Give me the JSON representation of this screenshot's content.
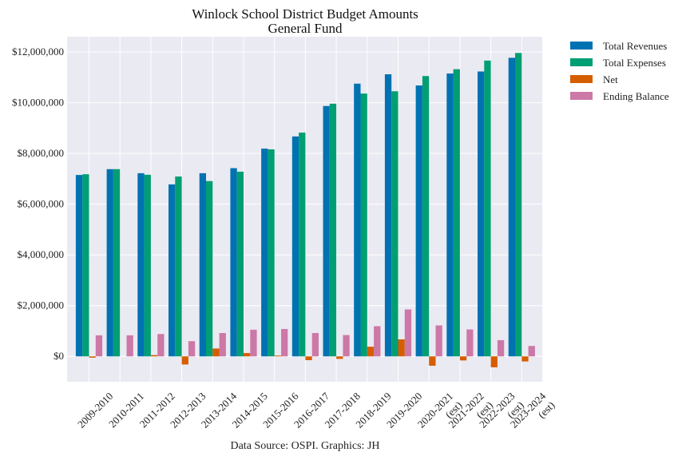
{
  "chart_data": {
    "type": "bar",
    "title": "Winlock School District Budget Amounts",
    "subtitle": "General Fund",
    "xlabel": "",
    "ylabel": "",
    "source": "Data Source: OSPI. Graphics: JH",
    "ylim": [
      -1000000,
      12600000
    ],
    "yticks": [
      0,
      2000000,
      4000000,
      6000000,
      8000000,
      10000000,
      12000000
    ],
    "ytick_labels": [
      "$0",
      "$2,000,000",
      "$4,000,000",
      "$6,000,000",
      "$8,000,000",
      "$10,000,000",
      "$12,000,000"
    ],
    "grid": true,
    "legend_position": "outside top-right",
    "categories": [
      "2009-2010",
      "2010-2011",
      "2011-2012",
      "2012-2013",
      "2013-2014",
      "2014-2015",
      "2015-2016",
      "2016-2017",
      "2017-2018",
      "2018-2019",
      "2019-2020",
      "2020-2021\n(est)",
      "2021-2022\n(est)",
      "2022-2023\n(est)",
      "2023-2024\n(est)"
    ],
    "series": [
      {
        "name": "Total Revenues",
        "color": "#0072b2",
        "values": [
          7150000,
          7380000,
          7220000,
          6780000,
          7220000,
          7420000,
          8190000,
          8670000,
          9870000,
          10750000,
          11120000,
          10680000,
          11150000,
          11230000,
          11770000
        ]
      },
      {
        "name": "Total Expenses",
        "color": "#009e73",
        "values": [
          7180000,
          7380000,
          7160000,
          7090000,
          6910000,
          7280000,
          8160000,
          8820000,
          9960000,
          10360000,
          10450000,
          11050000,
          11320000,
          11660000,
          11960000
        ]
      },
      {
        "name": "Net",
        "color": "#d55e00",
        "values": [
          -50000,
          0,
          50000,
          -320000,
          310000,
          130000,
          30000,
          -150000,
          -100000,
          380000,
          670000,
          -370000,
          -160000,
          -430000,
          -200000
        ]
      },
      {
        "name": "Ending Balance",
        "color": "#cc79a7",
        "values": [
          830000,
          830000,
          880000,
          600000,
          920000,
          1050000,
          1080000,
          920000,
          840000,
          1190000,
          1850000,
          1220000,
          1060000,
          640000,
          410000
        ]
      }
    ]
  }
}
